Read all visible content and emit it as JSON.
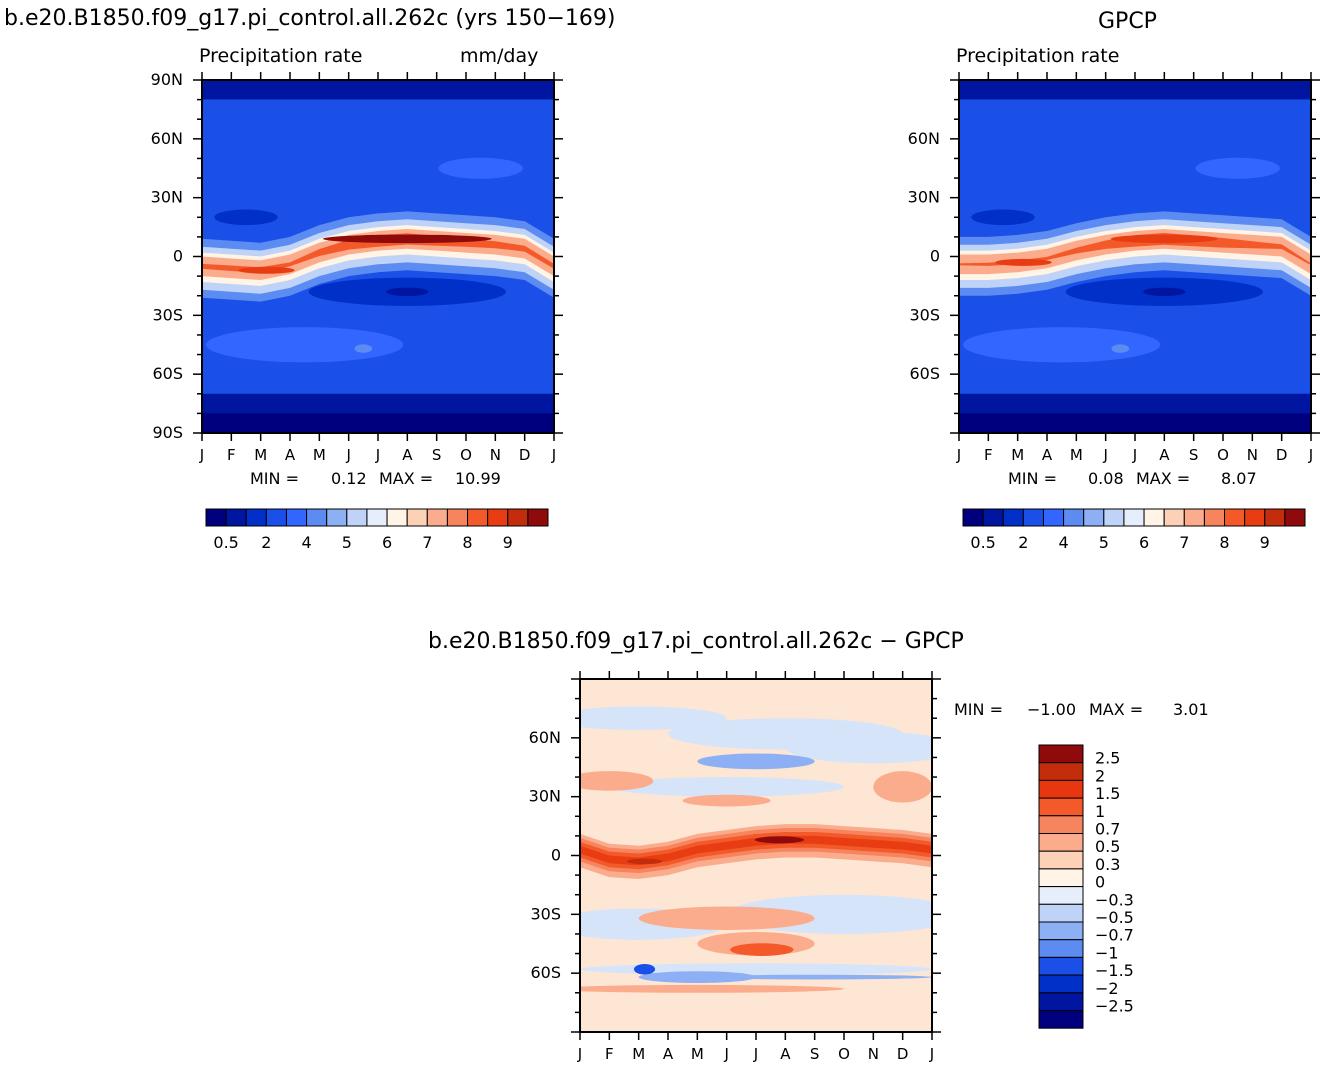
{
  "colors": {
    "blues": [
      "#00007f",
      "#0015a0",
      "#0030c8",
      "#1a4fe8",
      "#3366ff",
      "#5c8cf2",
      "#8db0f5",
      "#bfd3f8",
      "#e6eefc"
    ],
    "reds": [
      "#fff4e6",
      "#fdd1b8",
      "#fbac8c",
      "#f6845f",
      "#f4592a",
      "#e83d12",
      "#c42d0b",
      "#8f0b0b"
    ]
  },
  "chart_data": [
    {
      "type": "heatmap",
      "title_left": "b.e20.B1850.f09_g17.pi_control.all.262c (yrs 150−169)",
      "subtitle_left": "Precipitation rate",
      "subtitle_right": "mm/day",
      "x_ticks": [
        "J",
        "F",
        "M",
        "A",
        "M",
        "J",
        "J",
        "A",
        "S",
        "O",
        "N",
        "D",
        "J"
      ],
      "y_ticks": [
        "90N",
        "60N",
        "30N",
        "0",
        "30S",
        "60S",
        "90S"
      ],
      "ylim": [
        -90,
        90
      ],
      "min_label": "MIN =",
      "min_value": "0.12",
      "max_label": "MAX =",
      "max_value": "10.99",
      "colorbar_labels": [
        "0.5",
        "2",
        "4",
        "5",
        "6",
        "7",
        "8",
        "9"
      ],
      "itcz_lat_by_month": [
        -5,
        -6,
        -7,
        -4,
        2,
        6,
        8,
        9,
        8,
        7,
        6,
        4,
        -5
      ],
      "itcz_peak_mm_day": [
        7.5,
        7.8,
        8.0,
        7.0,
        8.5,
        10.0,
        10.99,
        10.8,
        10.0,
        9.0,
        8.5,
        8.0,
        7.5
      ]
    },
    {
      "type": "heatmap",
      "title_right": "GPCP",
      "subtitle_left": "Precipitation rate",
      "x_ticks": [
        "J",
        "F",
        "M",
        "A",
        "M",
        "J",
        "J",
        "A",
        "S",
        "O",
        "N",
        "D",
        "J"
      ],
      "y_ticks": [
        "60N",
        "30N",
        "0",
        "30S",
        "60S"
      ],
      "ylim": [
        -90,
        90
      ],
      "min_label": "MIN =",
      "min_value": "0.08",
      "max_label": "MAX =",
      "max_value": "8.07",
      "colorbar_labels": [
        "0.5",
        "2",
        "4",
        "5",
        "6",
        "7",
        "8",
        "9"
      ],
      "itcz_lat_by_month": [
        -4,
        -4,
        -3,
        -1,
        3,
        6,
        8,
        9,
        8,
        7,
        6,
        5,
        -4
      ],
      "itcz_peak_mm_day": [
        5.5,
        5.8,
        6.0,
        5.8,
        6.5,
        7.2,
        8.0,
        8.07,
        7.8,
        7.5,
        6.8,
        6.2,
        5.5
      ]
    },
    {
      "type": "heatmap",
      "title": "b.e20.B1850.f09_g17.pi_control.all.262c − GPCP",
      "x_ticks": [
        "J",
        "F",
        "M",
        "A",
        "M",
        "J",
        "J",
        "A",
        "S",
        "O",
        "N",
        "D",
        "J"
      ],
      "y_ticks": [
        "60N",
        "30N",
        "0",
        "30S",
        "60S"
      ],
      "ylim": [
        -90,
        90
      ],
      "min_label": "MIN =",
      "min_value": "−1.00",
      "max_label": "MAX =",
      "max_value": "3.01",
      "colorbar_labels": [
        "2.5",
        "2",
        "1.5",
        "1",
        "0.7",
        "0.5",
        "0.3",
        "0",
        "−0.3",
        "−0.5",
        "−0.7",
        "−1",
        "−1.5",
        "−2",
        "−2.5"
      ],
      "colorbar_colors": [
        "#8f0b0b",
        "#c42d0b",
        "#e8360f",
        "#f4592a",
        "#f6845f",
        "#fbac8c",
        "#fdd1b8",
        "#fff4e6",
        "#e6eefc",
        "#bfd3f8",
        "#8db0f5",
        "#5c8cf2",
        "#1a4fe8",
        "#0030c8",
        "#0015a0",
        "#00007f"
      ],
      "band_lat_by_month": [
        3,
        -2,
        -3,
        -1,
        3,
        5,
        7,
        8,
        8,
        7,
        6,
        5,
        3
      ],
      "band_peak_diff": [
        2.0,
        2.4,
        2.5,
        1.8,
        1.5,
        2.2,
        3.01,
        2.8,
        2.5,
        2.0,
        2.2,
        2.3,
        2.0
      ]
    }
  ]
}
